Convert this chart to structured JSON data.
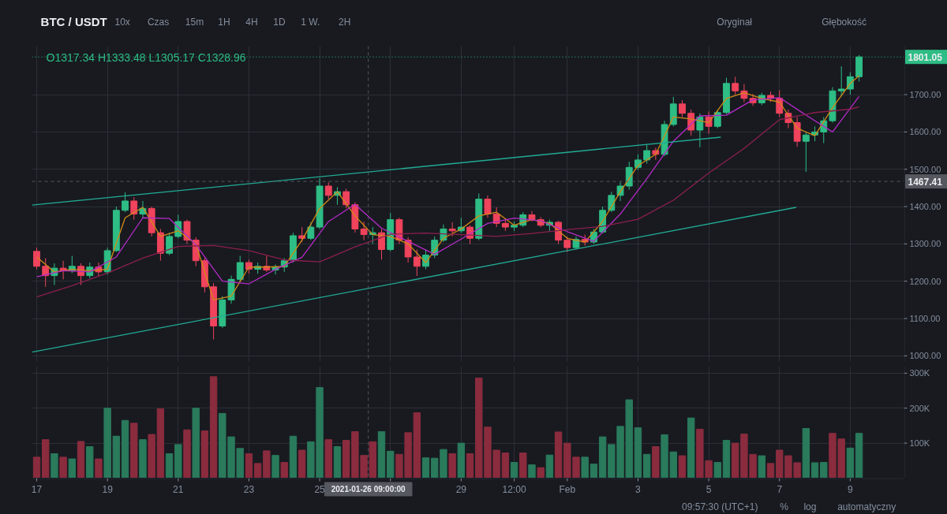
{
  "chart_data": [
    {
      "type": "candlestick",
      "title": "BTC / USDT",
      "subtitle": "O1317.34 H1333.48 L1305.17 C1328.96",
      "annotations": [
        "10x",
        "Czas",
        "15m",
        "1H",
        "4H",
        "1D",
        "1 W.",
        "2H",
        "Oryginał",
        "Głębokość"
      ],
      "x": [
        "2021-01-17T00:00",
        "2021-01-17T06:00",
        "2021-01-17T12:00",
        "2021-01-17T18:00",
        "2021-01-18T00:00",
        "2021-01-18T06:00",
        "2021-01-18T12:00",
        "2021-01-18T18:00",
        "2021-01-19T00:00",
        "2021-01-19T06:00",
        "2021-01-19T12:00",
        "2021-01-19T18:00",
        "2021-01-20T00:00",
        "2021-01-20T06:00",
        "2021-01-20T12:00",
        "2021-01-20T18:00",
        "2021-01-21T00:00",
        "2021-01-21T06:00",
        "2021-01-21T12:00",
        "2021-01-21T18:00",
        "2021-01-22T00:00",
        "2021-01-22T06:00",
        "2021-01-22T12:00",
        "2021-01-22T18:00",
        "2021-01-23T00:00",
        "2021-01-23T06:00",
        "2021-01-23T12:00",
        "2021-01-23T18:00",
        "2021-01-24T00:00",
        "2021-01-24T06:00",
        "2021-01-24T12:00",
        "2021-01-24T18:00",
        "2021-01-25T00:00",
        "2021-01-25T06:00",
        "2021-01-25T12:00",
        "2021-01-25T18:00",
        "2021-01-26T00:00",
        "2021-01-26T06:00",
        "2021-01-26T12:00",
        "2021-01-26T18:00",
        "2021-01-27T00:00",
        "2021-01-27T06:00",
        "2021-01-27T12:00",
        "2021-01-27T18:00",
        "2021-01-28T00:00",
        "2021-01-28T06:00",
        "2021-01-28T12:00",
        "2021-01-28T18:00",
        "2021-01-29T00:00",
        "2021-01-29T06:00",
        "2021-01-29T12:00",
        "2021-01-29T18:00",
        "2021-01-30T00:00",
        "2021-01-30T06:00",
        "2021-01-30T12:00",
        "2021-01-30T18:00",
        "2021-01-31T00:00",
        "2021-01-31T06:00",
        "2021-01-31T12:00",
        "2021-01-31T18:00",
        "2021-02-01T00:00",
        "2021-02-01T06:00",
        "2021-02-01T12:00",
        "2021-02-01T18:00",
        "2021-02-02T00:00",
        "2021-02-02T06:00",
        "2021-02-02T12:00",
        "2021-02-02T18:00",
        "2021-02-03T00:00",
        "2021-02-03T06:00",
        "2021-02-03T12:00",
        "2021-02-03T18:00",
        "2021-02-04T00:00",
        "2021-02-04T06:00",
        "2021-02-04T12:00",
        "2021-02-04T18:00",
        "2021-02-05T00:00",
        "2021-02-05T06:00",
        "2021-02-05T12:00",
        "2021-02-05T18:00",
        "2021-02-06T00:00",
        "2021-02-06T06:00",
        "2021-02-06T12:00",
        "2021-02-06T18:00",
        "2021-02-07T00:00",
        "2021-02-07T06:00",
        "2021-02-07T12:00",
        "2021-02-07T18:00",
        "2021-02-08T00:00",
        "2021-02-08T06:00",
        "2021-02-08T12:00",
        "2021-02-08T18:00",
        "2021-02-09T00:00",
        "2021-02-09T06:00"
      ],
      "ohlc": [
        [
          1280,
          1290,
          1232,
          1240
        ],
        [
          1240,
          1262,
          1185,
          1215
        ],
        [
          1215,
          1248,
          1190,
          1235
        ],
        [
          1235,
          1255,
          1205,
          1228
        ],
        [
          1228,
          1268,
          1222,
          1240
        ],
        [
          1240,
          1248,
          1190,
          1215
        ],
        [
          1215,
          1250,
          1208,
          1238
        ],
        [
          1238,
          1250,
          1212,
          1225
        ],
        [
          1225,
          1290,
          1218,
          1282
        ],
        [
          1282,
          1400,
          1278,
          1390
        ],
        [
          1390,
          1438,
          1385,
          1415
        ],
        [
          1415,
          1425,
          1365,
          1380
        ],
        [
          1380,
          1415,
          1370,
          1395
        ],
        [
          1395,
          1400,
          1320,
          1330
        ],
        [
          1330,
          1340,
          1255,
          1275
        ],
        [
          1275,
          1330,
          1270,
          1320
        ],
        [
          1320,
          1378,
          1315,
          1360
        ],
        [
          1360,
          1365,
          1300,
          1310
        ],
        [
          1310,
          1318,
          1240,
          1255
        ],
        [
          1255,
          1262,
          1170,
          1185
        ],
        [
          1185,
          1195,
          1044,
          1080
        ],
        [
          1080,
          1160,
          1075,
          1150
        ],
        [
          1150,
          1215,
          1140,
          1205
        ],
        [
          1205,
          1268,
          1198,
          1250
        ],
        [
          1250,
          1258,
          1220,
          1232
        ],
        [
          1232,
          1250,
          1220,
          1240
        ],
        [
          1240,
          1268,
          1225,
          1230
        ],
        [
          1230,
          1245,
          1218,
          1238
        ],
        [
          1238,
          1262,
          1225,
          1255
        ],
        [
          1255,
          1330,
          1250,
          1322
        ],
        [
          1322,
          1345,
          1305,
          1315
        ],
        [
          1315,
          1358,
          1310,
          1345
        ],
        [
          1345,
          1476,
          1340,
          1455
        ],
        [
          1455,
          1465,
          1420,
          1430
        ],
        [
          1430,
          1452,
          1405,
          1440
        ],
        [
          1440,
          1448,
          1395,
          1405
        ],
        [
          1405,
          1412,
          1330,
          1340
        ],
        [
          1340,
          1360,
          1310,
          1325
        ],
        [
          1325,
          1345,
          1300,
          1330
        ],
        [
          1330,
          1340,
          1258,
          1285
        ],
        [
          1285,
          1383,
          1280,
          1365
        ],
        [
          1365,
          1370,
          1300,
          1310
        ],
        [
          1310,
          1318,
          1250,
          1265
        ],
        [
          1265,
          1285,
          1214,
          1240
        ],
        [
          1240,
          1285,
          1232,
          1270
        ],
        [
          1270,
          1320,
          1262,
          1310
        ],
        [
          1310,
          1352,
          1305,
          1340
        ],
        [
          1340,
          1358,
          1320,
          1335
        ],
        [
          1335,
          1370,
          1330,
          1345
        ],
        [
          1345,
          1350,
          1300,
          1315
        ],
        [
          1315,
          1435,
          1310,
          1420
        ],
        [
          1420,
          1430,
          1370,
          1380
        ],
        [
          1380,
          1398,
          1345,
          1355
        ],
        [
          1355,
          1365,
          1335,
          1345
        ],
        [
          1345,
          1360,
          1335,
          1350
        ],
        [
          1350,
          1385,
          1345,
          1378
        ],
        [
          1378,
          1388,
          1360,
          1365
        ],
        [
          1365,
          1372,
          1345,
          1350
        ],
        [
          1350,
          1365,
          1335,
          1358
        ],
        [
          1358,
          1362,
          1300,
          1310
        ],
        [
          1310,
          1320,
          1278,
          1290
        ],
        [
          1290,
          1320,
          1285,
          1312
        ],
        [
          1312,
          1325,
          1295,
          1305
        ],
        [
          1305,
          1340,
          1300,
          1332
        ],
        [
          1332,
          1400,
          1328,
          1390
        ],
        [
          1390,
          1440,
          1385,
          1430
        ],
        [
          1430,
          1465,
          1415,
          1455
        ],
        [
          1455,
          1520,
          1445,
          1505
        ],
        [
          1505,
          1540,
          1498,
          1525
        ],
        [
          1525,
          1565,
          1515,
          1550
        ],
        [
          1550,
          1558,
          1525,
          1540
        ],
        [
          1540,
          1630,
          1535,
          1620
        ],
        [
          1620,
          1694,
          1615,
          1675
        ],
        [
          1675,
          1685,
          1640,
          1650
        ],
        [
          1650,
          1660,
          1590,
          1605
        ],
        [
          1605,
          1650,
          1559,
          1640
        ],
        [
          1640,
          1655,
          1595,
          1615
        ],
        [
          1615,
          1660,
          1610,
          1652
        ],
        [
          1652,
          1745,
          1648,
          1730
        ],
        [
          1730,
          1748,
          1700,
          1710
        ],
        [
          1710,
          1728,
          1680,
          1690
        ],
        [
          1690,
          1702,
          1670,
          1678
        ],
        [
          1678,
          1705,
          1672,
          1698
        ],
        [
          1698,
          1708,
          1680,
          1690
        ],
        [
          1690,
          1712,
          1640,
          1650
        ],
        [
          1650,
          1660,
          1610,
          1625
        ],
        [
          1625,
          1640,
          1560,
          1575
        ],
        [
          1575,
          1600,
          1493,
          1592
        ],
        [
          1592,
          1615,
          1575,
          1600
        ],
        [
          1600,
          1640,
          1570,
          1630
        ],
        [
          1630,
          1720,
          1625,
          1710
        ],
        [
          1710,
          1776,
          1695,
          1715
        ],
        [
          1715,
          1760,
          1700,
          1748
        ],
        [
          1748,
          1806,
          1735,
          1801.05
        ]
      ],
      "colors": [
        "#f0435c",
        "#f0435c",
        "#2ebd85",
        "#f0435c",
        "#2ebd85",
        "#f0435c",
        "#2ebd85",
        "#f0435c",
        "#2ebd85",
        "#2ebd85",
        "#2ebd85",
        "#f0435c",
        "#2ebd85",
        "#f0435c",
        "#f0435c",
        "#2ebd85",
        "#2ebd85",
        "#f0435c",
        "#f0435c",
        "#f0435c",
        "#f0435c",
        "#2ebd85",
        "#2ebd85",
        "#2ebd85",
        "#f0435c",
        "#2ebd85",
        "#f0435c",
        "#2ebd85",
        "#2ebd85",
        "#2ebd85",
        "#f0435c",
        "#2ebd85",
        "#2ebd85",
        "#f0435c",
        "#2ebd85",
        "#f0435c",
        "#f0435c",
        "#f0435c",
        "#2ebd85",
        "#f0435c",
        "#2ebd85",
        "#f0435c",
        "#f0435c",
        "#f0435c",
        "#2ebd85",
        "#2ebd85",
        "#2ebd85",
        "#f0435c",
        "#2ebd85",
        "#f0435c",
        "#2ebd85",
        "#f0435c",
        "#f0435c",
        "#f0435c",
        "#2ebd85",
        "#2ebd85",
        "#f0435c",
        "#f0435c",
        "#2ebd85",
        "#f0435c",
        "#f0435c",
        "#2ebd85",
        "#f0435c",
        "#2ebd85",
        "#2ebd85",
        "#2ebd85",
        "#2ebd85",
        "#2ebd85",
        "#2ebd85",
        "#2ebd85",
        "#f0435c",
        "#2ebd85",
        "#2ebd85",
        "#f0435c",
        "#f0435c",
        "#2ebd85",
        "#f0435c",
        "#2ebd85",
        "#2ebd85",
        "#f0435c",
        "#f0435c",
        "#f0435c",
        "#2ebd85",
        "#f0435c",
        "#f0435c",
        "#f0435c",
        "#f0435c",
        "#2ebd85",
        "#2ebd85",
        "#2ebd85",
        "#2ebd85",
        "#2ebd85",
        "#2ebd85",
        "#2ebd85"
      ],
      "series": [
        {
          "type": "line",
          "color": "#d08a17",
          "x": [
            "2021-01-17T00:00",
            "2021-01-17T12:00",
            "2021-01-18T00:00",
            "2021-01-18T12:00",
            "2021-01-19T00:00",
            "2021-01-19T12:00",
            "2021-01-20T00:00",
            "2021-01-20T12:00",
            "2021-01-21T00:00",
            "2021-01-21T12:00",
            "2021-01-22T00:00",
            "2021-01-22T12:00",
            "2021-01-23T00:00",
            "2021-01-23T12:00",
            "2021-01-24T00:00",
            "2021-01-24T12:00",
            "2021-01-25T00:00",
            "2021-01-25T12:00",
            "2021-01-26T00:00",
            "2021-01-26T12:00",
            "2021-01-27T00:00",
            "2021-01-27T12:00",
            "2021-01-28T00:00",
            "2021-01-28T12:00",
            "2021-01-29T00:00",
            "2021-01-29T12:00",
            "2021-01-30T00:00",
            "2021-01-30T12:00",
            "2021-01-31T00:00",
            "2021-01-31T12:00",
            "2021-02-01T00:00",
            "2021-02-01T12:00",
            "2021-02-02T00:00",
            "2021-02-02T12:00",
            "2021-02-03T00:00",
            "2021-02-03T12:00",
            "2021-02-04T00:00",
            "2021-02-04T12:00",
            "2021-02-05T00:00",
            "2021-02-05T12:00",
            "2021-02-06T00:00",
            "2021-02-06T12:00",
            "2021-02-07T00:00",
            "2021-02-07T12:00",
            "2021-02-08T00:00",
            "2021-02-08T12:00",
            "2021-02-09T00:00",
            "2021-02-09T06:00"
          ],
          "values": [
            1265,
            1225,
            1232,
            1228,
            1232,
            1370,
            1398,
            1320,
            1335,
            1300,
            1150,
            1160,
            1238,
            1238,
            1240,
            1310,
            1395,
            1440,
            1375,
            1325,
            1320,
            1300,
            1250,
            1315,
            1340,
            1375,
            1385,
            1350,
            1365,
            1355,
            1315,
            1305,
            1360,
            1440,
            1510,
            1540,
            1640,
            1635,
            1625,
            1690,
            1705,
            1690,
            1680,
            1610,
            1590,
            1665,
            1730,
            1750
          ]
        },
        {
          "type": "line",
          "color": "#b52ac6",
          "x": [
            "2021-01-17T00:00",
            "2021-01-17T18:00",
            "2021-01-18T12:00",
            "2021-01-19T06:00",
            "2021-01-20T00:00",
            "2021-01-20T18:00",
            "2021-01-21T12:00",
            "2021-01-22T06:00",
            "2021-01-23T00:00",
            "2021-01-23T18:00",
            "2021-01-24T12:00",
            "2021-01-25T06:00",
            "2021-01-26T00:00",
            "2021-01-26T18:00",
            "2021-01-27T12:00",
            "2021-01-28T06:00",
            "2021-01-29T00:00",
            "2021-01-29T18:00",
            "2021-01-30T12:00",
            "2021-01-31T06:00",
            "2021-02-01T00:00",
            "2021-02-01T18:00",
            "2021-02-02T12:00",
            "2021-02-03T06:00",
            "2021-02-04T00:00",
            "2021-02-04T18:00",
            "2021-02-05T12:00",
            "2021-02-06T06:00",
            "2021-02-07T00:00",
            "2021-02-07T18:00",
            "2021-02-08T12:00",
            "2021-02-09T06:00"
          ],
          "values": [
            1212,
            1228,
            1225,
            1265,
            1370,
            1368,
            1298,
            1200,
            1193,
            1232,
            1264,
            1360,
            1406,
            1342,
            1307,
            1272,
            1313,
            1355,
            1369,
            1362,
            1333,
            1307,
            1380,
            1475,
            1575,
            1643,
            1645,
            1686,
            1692,
            1645,
            1600,
            1695
          ]
        },
        {
          "type": "line",
          "color": "#8c1f4e",
          "x": [
            "2021-01-17T00:00",
            "2021-01-18T00:00",
            "2021-01-19T00:00",
            "2021-01-20T00:00",
            "2021-01-21T00:00",
            "2021-01-22T00:00",
            "2021-01-23T00:00",
            "2021-01-24T00:00",
            "2021-01-25T00:00",
            "2021-01-26T00:00",
            "2021-01-27T00:00",
            "2021-01-28T00:00",
            "2021-01-29T00:00",
            "2021-01-30T00:00",
            "2021-01-31T00:00",
            "2021-02-01T00:00",
            "2021-02-02T00:00",
            "2021-02-03T00:00",
            "2021-02-04T00:00",
            "2021-02-05T00:00",
            "2021-02-06T00:00",
            "2021-02-07T00:00",
            "2021-02-08T00:00",
            "2021-02-09T00:00",
            "2021-02-09T06:00"
          ],
          "values": [
            1158,
            1188,
            1222,
            1262,
            1293,
            1296,
            1282,
            1257,
            1252,
            1292,
            1326,
            1329,
            1325,
            1320,
            1328,
            1338,
            1347,
            1366,
            1417,
            1490,
            1556,
            1633,
            1652,
            1661,
            1667
          ]
        },
        {
          "type": "line",
          "color": "#22ab94",
          "x": [
            "2021-01-16T20:47",
            "2021-02-05T08:10"
          ],
          "values": [
            1404,
            1586
          ]
        },
        {
          "type": "line",
          "color": "#22ab94",
          "x": [
            "2021-01-16T20:47",
            "2021-02-07T11:18"
          ],
          "values": [
            1010,
            1398
          ]
        }
      ],
      "xlim": [
        "2021-01-16T20:47",
        "2021-02-10T12:29"
      ],
      "ylim": [
        985,
        1830
      ],
      "xticks": [
        "2021-01-17",
        "2021-01-19",
        "2021-01-21",
        "2021-01-23",
        "2021-01-25",
        "2021-01-27",
        "2021-01-29",
        "2021-01-30T12:00",
        "2021-02-01",
        "2021-02-03",
        "2021-02-05",
        "2021-02-07",
        "2021-02-09"
      ],
      "yticks": [
        {
          "value": 1000,
          "label": "1000.00"
        },
        {
          "value": 1100,
          "label": "1100.00"
        },
        {
          "value": 1200,
          "label": "1200.00"
        },
        {
          "value": 1300,
          "label": "1300.00"
        },
        {
          "value": 1400,
          "label": "1400.00"
        },
        {
          "value": 1500,
          "label": "1500.00"
        },
        {
          "value": 1600,
          "label": "1600.00"
        },
        {
          "value": 1700,
          "label": "1700.00"
        }
      ],
      "tick_labels": "y",
      "grid": true,
      "ref_lines": [
        {
          "axis": "y",
          "value": 1801.05,
          "label": "1801.05",
          "color": "#2ebd85",
          "line_style": "dotted"
        },
        {
          "axis": "y",
          "value": 1467.41,
          "label": "1467.41",
          "color": "#55585f",
          "line_style": "dashed"
        },
        {
          "axis": "x",
          "value": "2021-01-26T09:00",
          "color": "#55585f",
          "line_style": "dashed"
        }
      ]
    },
    {
      "type": "bar",
      "annotations": [
        "09:57:30 (UTC+1)",
        "%",
        "log",
        "automatyczny"
      ],
      "x": [
        "2021-01-17T00:00",
        "2021-01-17T06:00",
        "2021-01-17T12:00",
        "2021-01-17T18:00",
        "2021-01-18T00:00",
        "2021-01-18T06:00",
        "2021-01-18T12:00",
        "2021-01-18T18:00",
        "2021-01-19T00:00",
        "2021-01-19T06:00",
        "2021-01-19T12:00",
        "2021-01-19T18:00",
        "2021-01-20T00:00",
        "2021-01-20T06:00",
        "2021-01-20T12:00",
        "2021-01-20T18:00",
        "2021-01-21T00:00",
        "2021-01-21T06:00",
        "2021-01-21T12:00",
        "2021-01-21T18:00",
        "2021-01-22T00:00",
        "2021-01-22T06:00",
        "2021-01-22T12:00",
        "2021-01-22T18:00",
        "2021-01-23T00:00",
        "2021-01-23T06:00",
        "2021-01-23T12:00",
        "2021-01-23T18:00",
        "2021-01-24T00:00",
        "2021-01-24T06:00",
        "2021-01-24T12:00",
        "2021-01-24T18:00",
        "2021-01-25T00:00",
        "2021-01-25T06:00",
        "2021-01-25T12:00",
        "2021-01-25T18:00",
        "2021-01-26T00:00",
        "2021-01-26T06:00",
        "2021-01-26T12:00",
        "2021-01-26T18:00",
        "2021-01-27T00:00",
        "2021-01-27T06:00",
        "2021-01-27T12:00",
        "2021-01-27T18:00",
        "2021-01-28T00:00",
        "2021-01-28T06:00",
        "2021-01-28T12:00",
        "2021-01-28T18:00",
        "2021-01-29T00:00",
        "2021-01-29T06:00",
        "2021-01-29T12:00",
        "2021-01-29T18:00",
        "2021-01-30T00:00",
        "2021-01-30T06:00",
        "2021-01-30T12:00",
        "2021-01-30T18:00",
        "2021-01-31T00:00",
        "2021-01-31T06:00",
        "2021-01-31T12:00",
        "2021-01-31T18:00",
        "2021-02-01T00:00",
        "2021-02-01T06:00",
        "2021-02-01T12:00",
        "2021-02-01T18:00",
        "2021-02-02T00:00",
        "2021-02-02T06:00",
        "2021-02-02T12:00",
        "2021-02-02T18:00",
        "2021-02-03T00:00",
        "2021-02-03T06:00",
        "2021-02-03T12:00",
        "2021-02-03T18:00",
        "2021-02-04T00:00",
        "2021-02-04T06:00",
        "2021-02-04T12:00",
        "2021-02-04T18:00",
        "2021-02-05T00:00",
        "2021-02-05T06:00",
        "2021-02-05T12:00",
        "2021-02-05T18:00",
        "2021-02-06T00:00",
        "2021-02-06T06:00",
        "2021-02-06T12:00",
        "2021-02-06T18:00",
        "2021-02-07T00:00",
        "2021-02-07T06:00",
        "2021-02-07T12:00",
        "2021-02-07T18:00",
        "2021-02-08T00:00",
        "2021-02-08T06:00",
        "2021-02-08T12:00",
        "2021-02-08T18:00",
        "2021-02-09T00:00",
        "2021-02-09T06:00"
      ],
      "values": [
        60000,
        110000,
        70000,
        60000,
        55000,
        105000,
        90000,
        55000,
        200000,
        120000,
        165000,
        157000,
        110000,
        125000,
        198000,
        70000,
        96000,
        138000,
        200000,
        135000,
        290000,
        185000,
        118000,
        85000,
        70000,
        42000,
        78000,
        65000,
        45000,
        120000,
        80000,
        104000,
        259000,
        110000,
        90000,
        108000,
        133000,
        65000,
        104000,
        133000,
        77000,
        68000,
        130000,
        187000,
        58000,
        57000,
        82000,
        70000,
        100000,
        70000,
        286000,
        146000,
        80000,
        72000,
        45000,
        72000,
        38000,
        30000,
        66000,
        132000,
        100000,
        60000,
        60000,
        40000,
        118000,
        96000,
        148000,
        224000,
        144000,
        68000,
        90000,
        124000,
        75000,
        64000,
        172000,
        140000,
        50000,
        45000,
        108000,
        100000,
        126000,
        68000,
        64000,
        42000,
        80000,
        64000,
        44000,
        142000,
        44000,
        45000,
        128000,
        112000,
        86000,
        128000
      ],
      "colors": [
        "#8a2c3e",
        "#8a2c3e",
        "#2a7a5c",
        "#8a2c3e",
        "#2a7a5c",
        "#8a2c3e",
        "#2a7a5c",
        "#8a2c3e",
        "#2a7a5c",
        "#2a7a5c",
        "#2a7a5c",
        "#8a2c3e",
        "#2a7a5c",
        "#8a2c3e",
        "#8a2c3e",
        "#2a7a5c",
        "#2a7a5c",
        "#8a2c3e",
        "#2a7a5c",
        "#8a2c3e",
        "#8a2c3e",
        "#2a7a5c",
        "#2a7a5c",
        "#2a7a5c",
        "#8a2c3e",
        "#8a2c3e",
        "#8a2c3e",
        "#2a7a5c",
        "#8a2c3e",
        "#2a7a5c",
        "#8a2c3e",
        "#2a7a5c",
        "#2a7a5c",
        "#8a2c3e",
        "#2a7a5c",
        "#8a2c3e",
        "#8a2c3e",
        "#8a2c3e",
        "#8a2c3e",
        "#2a7a5c",
        "#2a7a5c",
        "#8a2c3e",
        "#8a2c3e",
        "#8a2c3e",
        "#2a7a5c",
        "#2a7a5c",
        "#2a7a5c",
        "#8a2c3e",
        "#2a7a5c",
        "#8a2c3e",
        "#8a2c3e",
        "#8a2c3e",
        "#8a2c3e",
        "#8a2c3e",
        "#2a7a5c",
        "#8a2c3e",
        "#2a7a5c",
        "#8a2c3e",
        "#2a7a5c",
        "#8a2c3e",
        "#8a2c3e",
        "#8a2c3e",
        "#2a7a5c",
        "#2a7a5c",
        "#2a7a5c",
        "#2a7a5c",
        "#2a7a5c",
        "#2a7a5c",
        "#2a7a5c",
        "#2a7a5c",
        "#8a2c3e",
        "#2a7a5c",
        "#2a7a5c",
        "#8a2c3e",
        "#2a7a5c",
        "#8a2c3e",
        "#8a2c3e",
        "#2a7a5c",
        "#2a7a5c",
        "#8a2c3e",
        "#8a2c3e",
        "#8a2c3e",
        "#2a7a5c",
        "#8a2c3e",
        "#8a2c3e",
        "#8a2c3e",
        "#8a2c3e",
        "#2a7a5c",
        "#2a7a5c",
        "#2a7a5c",
        "#8a2c3e",
        "#8a2c3e",
        "#2a7a5c",
        "#2a7a5c"
      ],
      "xlim": [
        "2021-01-16T20:47",
        "2021-02-10T12:29"
      ],
      "ylim": [
        0,
        320000
      ],
      "xticks": [
        {
          "value": "2021-01-17",
          "label": "17"
        },
        {
          "value": "2021-01-19",
          "label": "19"
        },
        {
          "value": "2021-01-21",
          "label": "21"
        },
        {
          "value": "2021-01-23",
          "label": "23"
        },
        {
          "value": "2021-01-25",
          "label": "25"
        },
        {
          "value": "2021-01-27",
          "label": null
        },
        {
          "value": "2021-01-29",
          "label": "29"
        },
        {
          "value": "2021-01-30T12:00",
          "label": "12:00"
        },
        {
          "value": "2021-02-01",
          "label": "Feb"
        },
        {
          "value": "2021-02-03",
          "label": "3"
        },
        {
          "value": "2021-02-05",
          "label": "5"
        },
        {
          "value": "2021-02-07",
          "label": "7"
        },
        {
          "value": "2021-02-09",
          "label": "9"
        }
      ],
      "yticks": [
        {
          "value": 100000,
          "label": "100K"
        },
        {
          "value": 200000,
          "label": "200K"
        },
        {
          "value": 300000,
          "label": "300K"
        }
      ],
      "grid": true,
      "ref_lines": [
        {
          "axis": "x",
          "value": "2021-01-26T09:00",
          "label": "2021-01-26 09:00:00",
          "color": "#55585f",
          "line_style": "dashed"
        }
      ]
    }
  ]
}
